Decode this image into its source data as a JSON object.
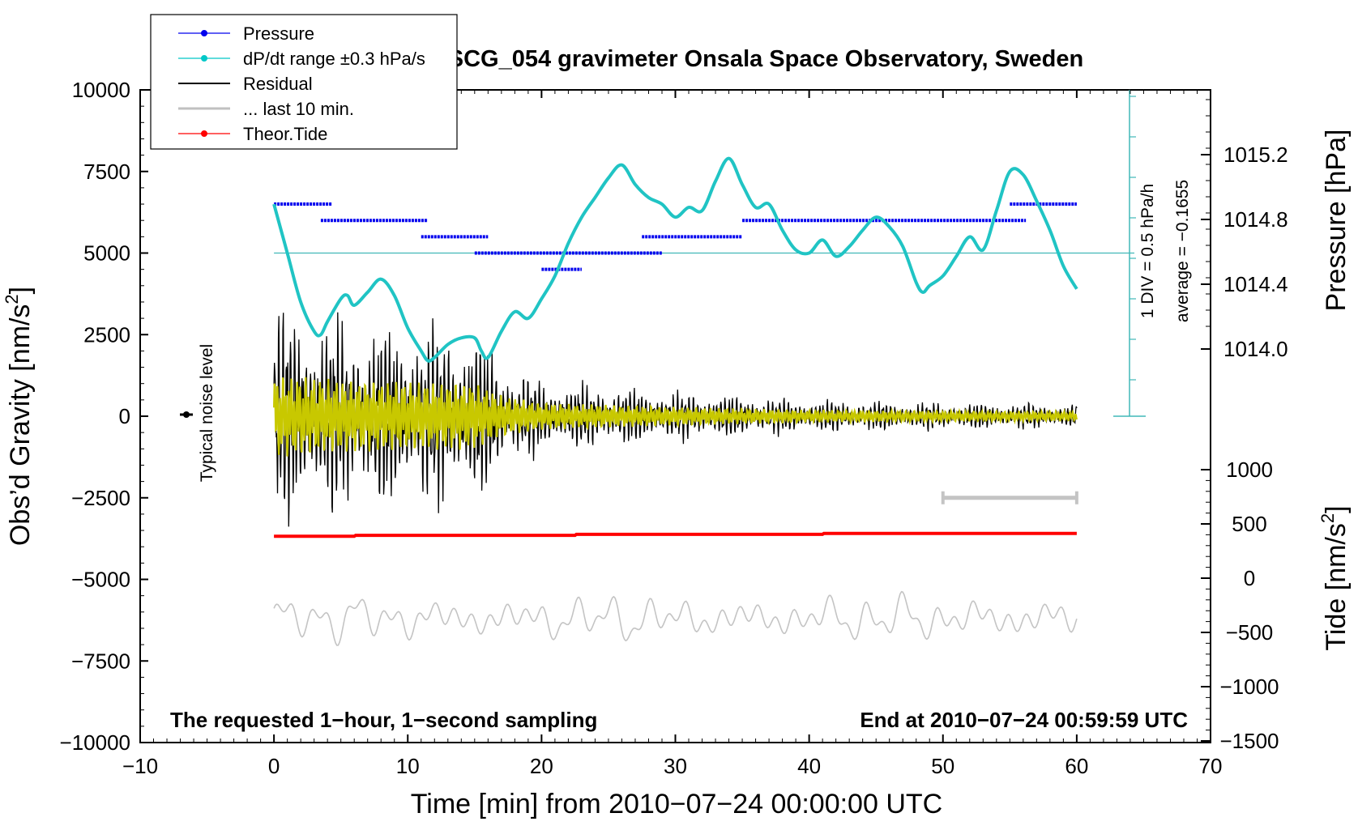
{
  "chart_data": {
    "type": "line",
    "title": "SCG_054 gravimeter Onsala Space Observatory, Sweden",
    "xlabel": "Time [min] from 2010−07−24 00:00:00 UTC",
    "ylabel_left": "Obs’d Gravity [nm/s",
    "ylabel_left_sup": "2",
    "ylabel_left_end": "]",
    "ylabel_pressure": "Pressure [hPa]",
    "ylabel_tide": "Tide [nm/s",
    "ylabel_tide_sup": "2",
    "ylabel_tide_end": "]",
    "xlim": [
      -10,
      70
    ],
    "ylim": [
      -10000,
      10000
    ],
    "x_ticks": [
      "−10",
      "0",
      "10",
      "20",
      "30",
      "40",
      "50",
      "60",
      "70"
    ],
    "x_tick_values": [
      -10,
      0,
      10,
      20,
      30,
      40,
      50,
      60,
      70
    ],
    "y_ticks": [
      "10000",
      "7500",
      "5000",
      "2500",
      "0",
      "−2500",
      "−5000",
      "−7500",
      "−10000"
    ],
    "y_tick_values": [
      10000,
      7500,
      5000,
      2500,
      0,
      -2500,
      -5000,
      -7500,
      -10000
    ],
    "pressure_axis": {
      "ticks": [
        "1015.2",
        "1014.8",
        "1014.4",
        "1014.0"
      ],
      "tick_values": [
        1015.2,
        1014.8,
        1014.4,
        1014.0
      ],
      "range": [
        1013.6,
        1015.6
      ]
    },
    "tide_axis": {
      "ticks": [
        "1000",
        "500",
        "0",
        "−500",
        "−1000",
        "−1500"
      ],
      "tick_values": [
        1000,
        500,
        0,
        -500,
        -1000,
        -1500
      ]
    },
    "dpdt_scale": {
      "div_label": "1 DIV = 0.5 hPa/h",
      "average_label": "average = −0.1655"
    },
    "noise_label": "Typical noise level",
    "note_left": "The requested 1−hour, 1−second sampling",
    "note_right": "End at 2010−07−24 00:59:59 UTC",
    "legend": [
      {
        "label": "Pressure",
        "color": "#0000ee",
        "marker": true
      },
      {
        "label": "dP/dt range ±0.3 hPa/s",
        "color": "#00c8c8",
        "marker": true
      },
      {
        "label": "Residual",
        "color": "#000000",
        "marker": false
      },
      {
        "label": "... last 10 min.",
        "color": "#c0c0c0",
        "marker": false
      },
      {
        "label": "Theor.Tide",
        "color": "#ff0000",
        "marker": true
      }
    ],
    "colors": {
      "pressure": "#0000ee",
      "dpdt": "#20c4c4",
      "residual": "#000000",
      "smoothed": "#c8c800",
      "last10": "#c4c4c4",
      "tide": "#ff0000",
      "scale": "#40b8b8"
    },
    "series": [
      {
        "name": "dP/dt range ±0.3 hPa/s",
        "units": "nm/s2 axis",
        "x": [
          0,
          1,
          2,
          3,
          3.5,
          4,
          5,
          5.5,
          6,
          7,
          8,
          9,
          10,
          11,
          11.5,
          12,
          13,
          14,
          15,
          15.5,
          16,
          17,
          18,
          19,
          20,
          21,
          22,
          23,
          24,
          25,
          26,
          27,
          28,
          29,
          30,
          31,
          32,
          33,
          34,
          35,
          36,
          37,
          38,
          39,
          40,
          41,
          42,
          43,
          44,
          45,
          46,
          47,
          48,
          48.5,
          49,
          50,
          51,
          52,
          53,
          54,
          55,
          56,
          57,
          58,
          59,
          60
        ],
        "values": [
          6500,
          5000,
          3500,
          2600,
          2500,
          2900,
          3600,
          3700,
          3400,
          3800,
          4200,
          3700,
          2700,
          2000,
          1700,
          1800,
          2200,
          2400,
          2400,
          2000,
          1800,
          2600,
          3200,
          3000,
          3600,
          4300,
          5300,
          6100,
          6700,
          7300,
          7700,
          7100,
          6700,
          6500,
          6100,
          6400,
          6300,
          7200,
          7900,
          7100,
          6400,
          6500,
          5700,
          5100,
          5000,
          5400,
          4900,
          5200,
          5700,
          6100,
          5800,
          5200,
          4100,
          3800,
          4000,
          4300,
          4900,
          5500,
          5100,
          6300,
          7500,
          7400,
          6600,
          5700,
          4600,
          3900
        ]
      },
      {
        "name": "Pressure",
        "units": "nm/s2 axis (plotted levels)",
        "segments": [
          {
            "x0": 0,
            "x1": 4.3,
            "y": 6500
          },
          {
            "x0": 3.5,
            "x1": 11.5,
            "y": 6000
          },
          {
            "x0": 11,
            "x1": 16,
            "y": 5500
          },
          {
            "x0": 15,
            "x1": 29,
            "y": 5000
          },
          {
            "x0": 20,
            "x1": 23,
            "y": 4500
          },
          {
            "x0": 27.5,
            "x1": 35,
            "y": 5500
          },
          {
            "x0": 35,
            "x1": 56.2,
            "y": 6000
          },
          {
            "x0": 55,
            "x1": 60,
            "y": 6500
          }
        ]
      },
      {
        "name": "Theor.Tide",
        "units": "nm/s2 axis",
        "x": [
          0,
          6,
          6.1,
          22.5,
          22.6,
          41,
          41.1,
          60
        ],
        "values": [
          -3680,
          -3680,
          -3650,
          -3650,
          -3620,
          -3620,
          -3590,
          -3590
        ]
      },
      {
        "name": "Residual",
        "description": "oscillating residual, envelope (nm/s2) by minute",
        "x": [
          0,
          5,
          10,
          15,
          17,
          20,
          25,
          30,
          40,
          50,
          60
        ],
        "envelope": [
          4000,
          3500,
          3300,
          3200,
          2000,
          1300,
          1100,
          900,
          600,
          500,
          450
        ]
      },
      {
        "name": "... last 10 min.",
        "description": "last 10 minutes of residual replotted, offset center (nm/s2)",
        "center": -6200,
        "amplitude": 1200,
        "range_marker": {
          "x0": 50,
          "x1": 60,
          "y": -2500
        }
      }
    ]
  }
}
